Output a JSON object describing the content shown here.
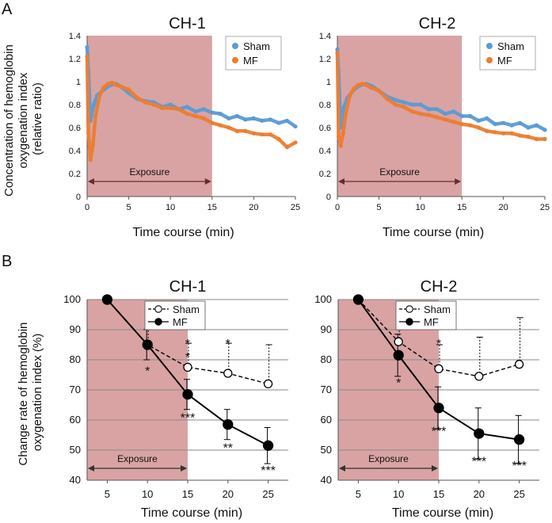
{
  "figure": {
    "panel_a_letter": "A",
    "panel_b_letter": "B",
    "panel_a_ylabel": [
      "Concentration of hemoglobin",
      "oxygenation index",
      "(relative ratio)"
    ],
    "panel_b_ylabel": [
      "Change rate of hemoglobin",
      "oxygenation index (%)"
    ],
    "exposure_label": "Exposure",
    "colors": {
      "exposure_fill": "#d9a3a3",
      "sham_line": "#5b9bd5",
      "mf_line": "#ed7d31",
      "axis": "#555555",
      "dark": "#000000"
    }
  },
  "chart_data": [
    {
      "id": "A-CH1",
      "type": "line",
      "title": "CH-1",
      "xlabel": "Time course (min)",
      "ylabel": "Concentration of hemoglobin oxygenation index (relative ratio)",
      "xlim": [
        0,
        25
      ],
      "ylim": [
        0,
        1.4
      ],
      "xticks": [
        0,
        5,
        10,
        15,
        20,
        25
      ],
      "yticks": [
        0,
        0.2,
        0.4,
        0.6,
        0.8,
        1,
        1.2,
        1.4
      ],
      "ytick_labels": [
        "0",
        "0.2",
        "0.4",
        "0.6",
        "0.8",
        "1",
        "1.2",
        "1.4"
      ],
      "exposure": [
        0,
        15
      ],
      "legend": [
        "Sham",
        "MF"
      ],
      "series": [
        {
          "name": "Sham",
          "x": [
            0,
            0.15,
            0.4,
            0.8,
            1.2,
            2,
            2.8,
            3.5,
            4.2,
            5,
            6,
            7,
            8,
            9,
            10,
            11,
            12,
            13,
            14,
            15,
            16,
            17,
            18,
            19,
            20,
            21,
            22,
            23,
            24,
            25
          ],
          "y": [
            1.3,
            1.1,
            0.66,
            0.8,
            0.88,
            0.93,
            0.97,
            0.98,
            0.95,
            0.9,
            0.85,
            0.83,
            0.82,
            0.78,
            0.8,
            0.76,
            0.78,
            0.74,
            0.76,
            0.73,
            0.72,
            0.68,
            0.7,
            0.67,
            0.68,
            0.66,
            0.67,
            0.64,
            0.66,
            0.61
          ]
        },
        {
          "name": "MF",
          "x": [
            0,
            0.15,
            0.4,
            0.7,
            1,
            1.5,
            2,
            2.5,
            3,
            3.5,
            4,
            5,
            6,
            7,
            8,
            9,
            10,
            11,
            12,
            13,
            14,
            15,
            16,
            17,
            18,
            19,
            20,
            21,
            22,
            23,
            24,
            25
          ],
          "y": [
            1.22,
            0.55,
            0.32,
            0.45,
            0.7,
            0.88,
            0.95,
            0.98,
            0.99,
            0.97,
            0.96,
            0.93,
            0.86,
            0.82,
            0.8,
            0.77,
            0.77,
            0.76,
            0.72,
            0.7,
            0.68,
            0.64,
            0.62,
            0.6,
            0.57,
            0.57,
            0.55,
            0.54,
            0.54,
            0.5,
            0.43,
            0.47
          ]
        }
      ]
    },
    {
      "id": "A-CH2",
      "type": "line",
      "title": "CH-2",
      "xlabel": "Time course (min)",
      "ylabel": "",
      "xlim": [
        0,
        25
      ],
      "ylim": [
        0,
        1.4
      ],
      "xticks": [
        0,
        5,
        10,
        15,
        20,
        25
      ],
      "yticks": [
        0,
        0.2,
        0.4,
        0.6,
        0.8,
        1,
        1.2,
        1.4
      ],
      "ytick_labels": [
        "0",
        "0.2",
        "0.4",
        "0.6",
        "0.8",
        "1",
        "1.2",
        "1.4"
      ],
      "exposure": [
        0,
        15
      ],
      "legend": [
        "Sham",
        "MF"
      ],
      "series": [
        {
          "name": "Sham",
          "x": [
            0,
            0.15,
            0.4,
            0.8,
            1.2,
            2,
            2.8,
            3.5,
            4.2,
            5,
            6,
            7,
            8,
            9,
            10,
            11,
            12,
            13,
            14,
            15,
            16,
            17,
            18,
            19,
            20,
            21,
            22,
            23,
            24,
            25
          ],
          "y": [
            1.28,
            1.08,
            0.6,
            0.78,
            0.86,
            0.93,
            0.97,
            0.98,
            0.96,
            0.92,
            0.87,
            0.84,
            0.82,
            0.8,
            0.8,
            0.76,
            0.76,
            0.72,
            0.74,
            0.7,
            0.7,
            0.66,
            0.68,
            0.63,
            0.64,
            0.62,
            0.64,
            0.6,
            0.62,
            0.58
          ]
        },
        {
          "name": "MF",
          "x": [
            0,
            0.15,
            0.4,
            0.7,
            1,
            1.5,
            2,
            2.5,
            3,
            3.5,
            4,
            5,
            6,
            7,
            8,
            9,
            10,
            11,
            12,
            13,
            14,
            15,
            16,
            17,
            18,
            19,
            20,
            21,
            22,
            23,
            24,
            25
          ],
          "y": [
            1.25,
            0.52,
            0.44,
            0.55,
            0.72,
            0.88,
            0.94,
            0.97,
            0.98,
            0.97,
            0.95,
            0.92,
            0.85,
            0.8,
            0.78,
            0.74,
            0.72,
            0.71,
            0.69,
            0.67,
            0.65,
            0.63,
            0.62,
            0.6,
            0.57,
            0.56,
            0.55,
            0.55,
            0.53,
            0.52,
            0.5,
            0.5
          ]
        }
      ]
    },
    {
      "id": "B-CH1",
      "type": "line",
      "title": "CH-1",
      "xlabel": "Time course (min)",
      "ylabel": "Change rate of hemoglobin oxygenation index (%)",
      "xlim": [
        2.5,
        27.5
      ],
      "ylim": [
        40,
        100
      ],
      "xticks": [
        5,
        10,
        15,
        20,
        25
      ],
      "yticks": [
        40,
        50,
        60,
        70,
        80,
        90,
        100
      ],
      "exposure": [
        2.5,
        15
      ],
      "legend": [
        "Sham",
        "MF"
      ],
      "series": [
        {
          "name": "Sham",
          "x": [
            5,
            10,
            15,
            20,
            25
          ],
          "y": [
            100,
            85,
            77.5,
            75.5,
            72
          ],
          "err": [
            0,
            5,
            8,
            10,
            13
          ],
          "marker": "open",
          "style": "dashed"
        },
        {
          "name": "MF",
          "x": [
            5,
            10,
            15,
            20,
            25
          ],
          "y": [
            100,
            85,
            68.5,
            58.5,
            51.5
          ],
          "err": [
            0,
            5,
            5,
            5,
            6
          ],
          "marker": "filled",
          "style": "solid"
        }
      ],
      "annotations": [
        {
          "text": "*",
          "x": 10,
          "y": 91,
          "pos": "above"
        },
        {
          "text": "*",
          "x": 10,
          "y": 77,
          "pos": "below"
        },
        {
          "text": "*",
          "x": 15,
          "y": 85.5,
          "pos": "above"
        },
        {
          "text": "*",
          "x": 15,
          "y": 81,
          "pos": "above"
        },
        {
          "text": "***",
          "x": 15,
          "y": 61.5,
          "pos": "below"
        },
        {
          "text": "*",
          "x": 20,
          "y": 85.5,
          "pos": "above"
        },
        {
          "text": "**",
          "x": 20,
          "y": 51.5,
          "pos": "below"
        },
        {
          "text": "***",
          "x": 25,
          "y": 44,
          "pos": "below"
        }
      ]
    },
    {
      "id": "B-CH2",
      "type": "line",
      "title": "CH-2",
      "xlabel": "Time course (min)",
      "ylabel": "",
      "xlim": [
        2.5,
        27.5
      ],
      "ylim": [
        40,
        100
      ],
      "xticks": [
        5,
        10,
        15,
        20,
        25
      ],
      "yticks": [
        40,
        50,
        60,
        70,
        80,
        90,
        100
      ],
      "exposure": [
        2.5,
        15
      ],
      "legend": [
        "Sham",
        "MF"
      ],
      "series": [
        {
          "name": "Sham",
          "x": [
            5,
            10,
            15,
            20,
            25
          ],
          "y": [
            100,
            86,
            77,
            74.5,
            78.5
          ],
          "err": [
            0,
            4,
            8,
            13,
            15.5
          ],
          "marker": "open",
          "style": "dashed"
        },
        {
          "name": "MF",
          "x": [
            5,
            10,
            15,
            20,
            25
          ],
          "y": [
            100,
            81.5,
            64,
            55.5,
            53.5
          ],
          "err": [
            0,
            7,
            7,
            8.5,
            8
          ],
          "marker": "filled",
          "style": "solid"
        }
      ],
      "annotations": [
        {
          "text": "*",
          "x": 10,
          "y": 91,
          "pos": "above"
        },
        {
          "text": "*",
          "x": 10,
          "y": 73,
          "pos": "below"
        },
        {
          "text": "*",
          "x": 15,
          "y": 85.5,
          "pos": "above"
        },
        {
          "text": "***",
          "x": 15,
          "y": 57,
          "pos": "below"
        },
        {
          "text": "***",
          "x": 20,
          "y": 47,
          "pos": "below"
        },
        {
          "text": "***",
          "x": 25,
          "y": 45.5,
          "pos": "below"
        }
      ]
    }
  ]
}
